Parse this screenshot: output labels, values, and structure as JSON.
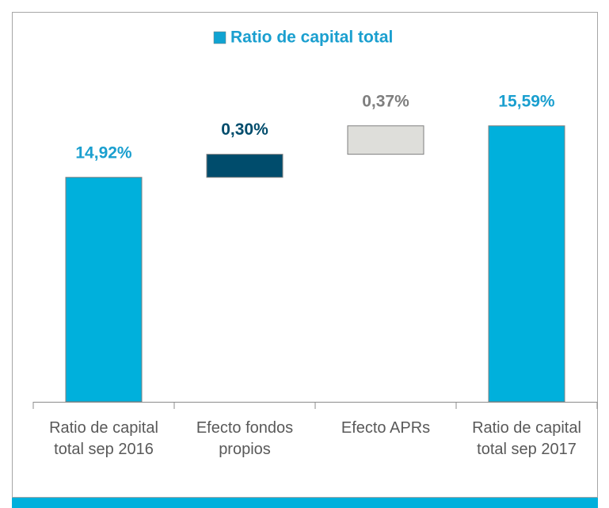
{
  "chart_data": {
    "type": "waterfall",
    "series": [
      {
        "name": "Ratio de capital total",
        "color": "#10a3d2",
        "values": [
          14.92,
          0.3,
          0.37,
          15.59
        ],
        "value_labels": [
          "14,92%",
          "0,30%",
          "0,37%",
          "15,59%"
        ]
      }
    ],
    "categories": [
      "Ratio de capital total sep 2016",
      "Efecto fondos propios",
      "Efecto APRs",
      "Ratio de capital total sep 2017"
    ],
    "colors": [
      "#00b0dc",
      "#004c6c",
      "#dededa",
      "#00b0dc"
    ],
    "label_colors": [
      "#1a9fcf",
      "#004c6c",
      "#7f7f7f",
      "#1a9fcf"
    ],
    "ylim": [
      12,
      16
    ]
  }
}
